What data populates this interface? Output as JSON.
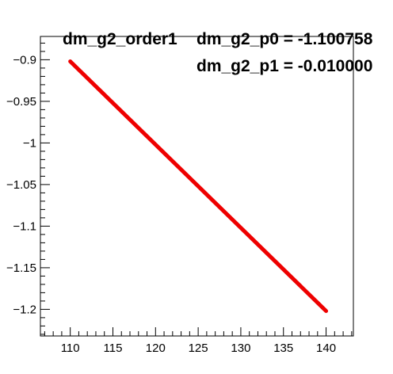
{
  "chart_data": {
    "type": "line",
    "title": "dm_g2_order1",
    "annotations": [
      "dm_g2_p0 = -1.100758",
      "dm_g2_p1 = -0.010000"
    ],
    "xlim": [
      106.5,
      143.2
    ],
    "ylim": [
      -1.232,
      -0.872
    ],
    "x_ticks": [
      110,
      115,
      120,
      125,
      130,
      135,
      140
    ],
    "x_tick_labels": [
      "110",
      "115",
      "120",
      "125",
      "130",
      "135",
      "140"
    ],
    "y_ticks": [
      -0.9,
      -0.95,
      -1,
      -1.05,
      -1.1,
      -1.15,
      -1.2
    ],
    "y_tick_labels": [
      "−0.9",
      "−0.95",
      "−1",
      "−1.05",
      "−1.1",
      "−1.15",
      "−1.2"
    ],
    "grid": false,
    "series": [
      {
        "color": "#ee0000",
        "x": [
          110,
          140
        ],
        "y": [
          -0.902,
          -1.202
        ]
      }
    ]
  }
}
